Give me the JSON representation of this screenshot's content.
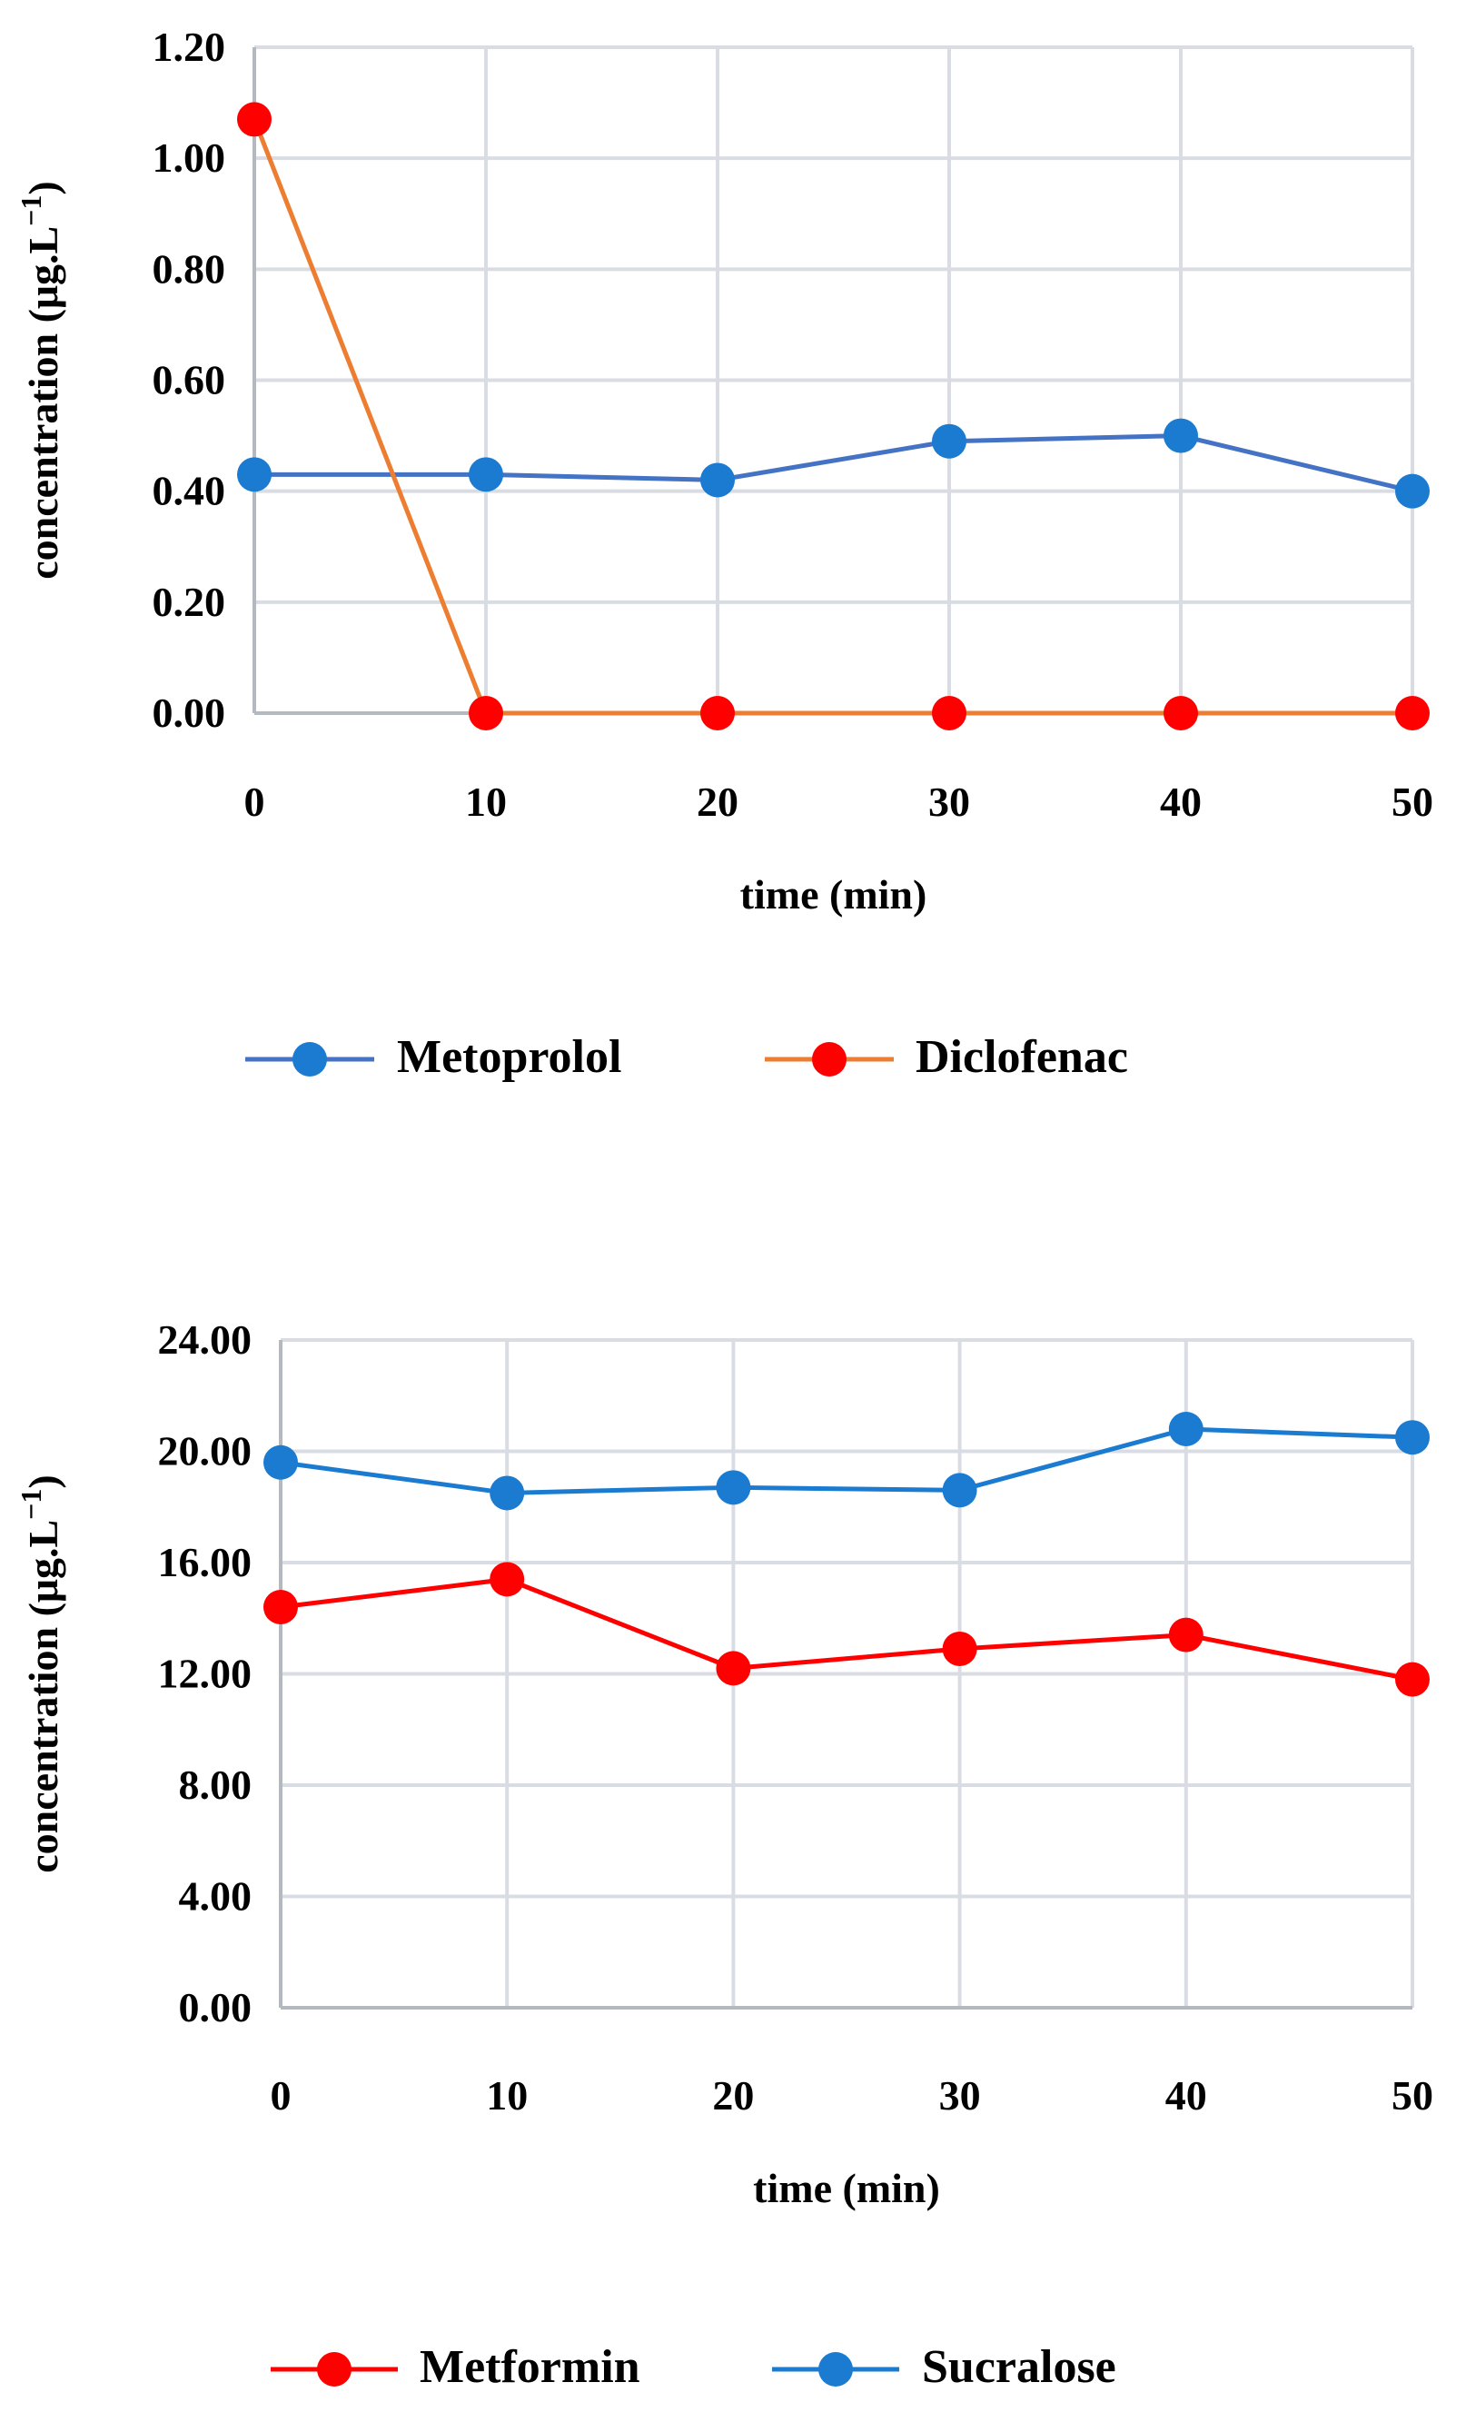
{
  "chart_data": [
    {
      "type": "line",
      "title": "",
      "xlabel": "time (min)",
      "ylabel": "concentration (μg.L",
      "ylabel_sup": "−1",
      "ylabel_close": ")",
      "x": [
        0,
        10,
        20,
        30,
        40,
        50
      ],
      "x_tick_labels": [
        "0",
        "10",
        "20",
        "30",
        "40",
        "50"
      ],
      "xlim": [
        0,
        50
      ],
      "ylim": [
        0,
        1.2
      ],
      "y_ticks": [
        0,
        0.2,
        0.4,
        0.6,
        0.8,
        1.0,
        1.2
      ],
      "y_tick_labels": [
        "0.00",
        "0.20",
        "0.40",
        "0.60",
        "0.80",
        "1.00",
        "1.20"
      ],
      "grid": true,
      "legend_position": "bottom",
      "series": [
        {
          "name": "Metoprolol",
          "values": [
            0.43,
            0.43,
            0.42,
            0.49,
            0.5,
            0.4
          ],
          "line_color": "#4472c4",
          "marker_color": "#1a7bd0"
        },
        {
          "name": "Diclofenac",
          "values": [
            1.07,
            0.0,
            0.0,
            0.0,
            0.0,
            0.0
          ],
          "line_color": "#ed7d31",
          "marker_color": "#ff0000"
        }
      ]
    },
    {
      "type": "line",
      "title": "",
      "xlabel": "time (min)",
      "ylabel": "concentration (μg.L",
      "ylabel_sup": "−1",
      "ylabel_close": ")",
      "x": [
        0,
        10,
        20,
        30,
        40,
        50
      ],
      "x_tick_labels": [
        "0",
        "10",
        "20",
        "30",
        "40",
        "50"
      ],
      "xlim": [
        0,
        50
      ],
      "ylim": [
        0,
        24
      ],
      "y_ticks": [
        0,
        4,
        8,
        12,
        16,
        20,
        24
      ],
      "y_tick_labels": [
        "0.00",
        "4.00",
        "8.00",
        "12.00",
        "16.00",
        "20.00",
        "24.00"
      ],
      "grid": true,
      "legend_position": "bottom",
      "series": [
        {
          "name": "Metformin",
          "values": [
            14.4,
            15.4,
            12.2,
            12.9,
            13.4,
            11.8
          ],
          "line_color": "#ff0000",
          "marker_color": "#ff0000"
        },
        {
          "name": "Sucralose",
          "values": [
            19.6,
            18.5,
            18.7,
            18.6,
            20.8,
            20.5
          ],
          "line_color": "#1a7bd0",
          "marker_color": "#1a7bd0"
        }
      ]
    }
  ],
  "colors": {
    "gridline": "#d9dde3",
    "axis": "#b4b9c0",
    "text": "#000000",
    "background": "#ffffff"
  }
}
